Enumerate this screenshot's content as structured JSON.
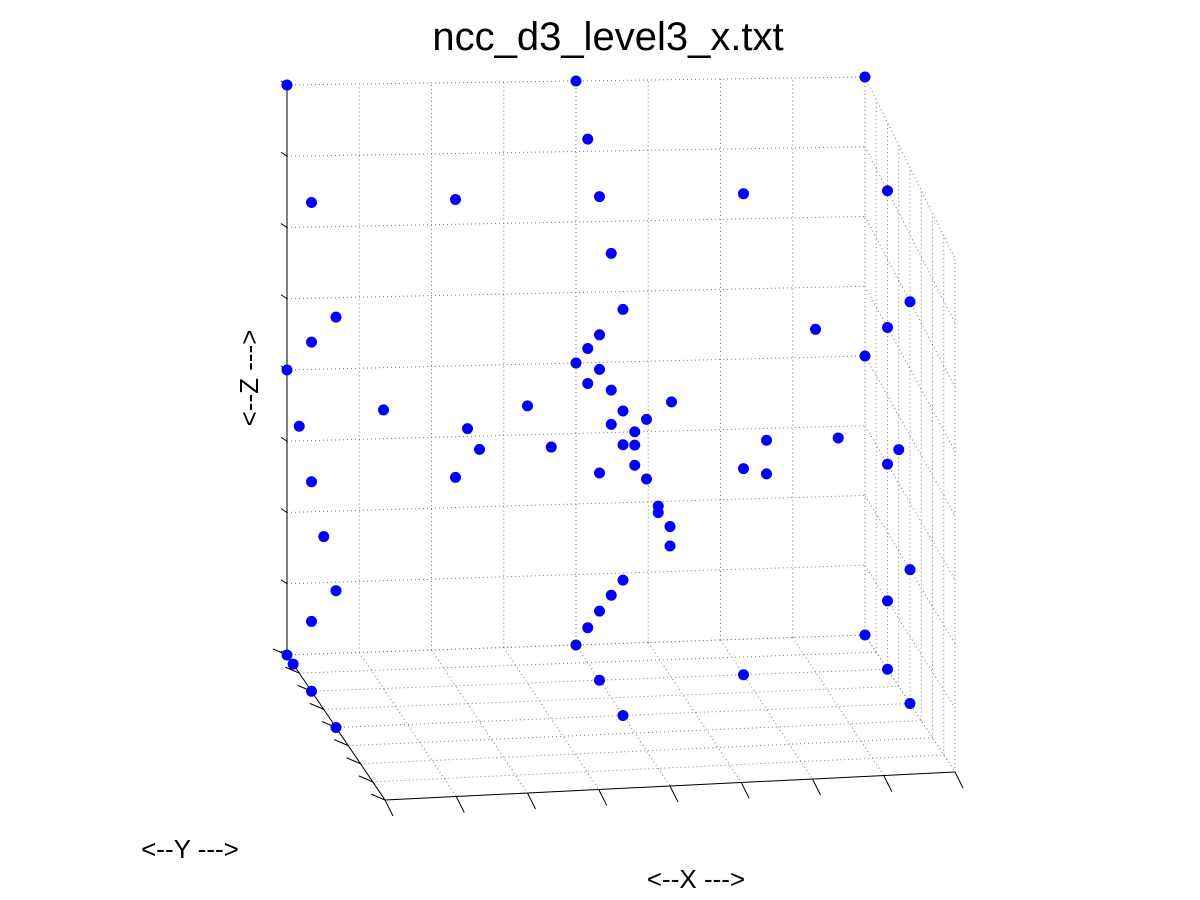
{
  "chart_data": {
    "type": "scatter",
    "title": "ncc_d3_level3_x.txt",
    "xlabel": "<--X --->",
    "ylabel": "<--Y --->",
    "zlabel": "<--Z --->",
    "xlim": [
      0,
      8
    ],
    "ylim": [
      0,
      8
    ],
    "zlim": [
      0,
      8
    ],
    "grid": true,
    "marker_color": "#0000ff",
    "series": [
      {
        "values": [
          [
            0,
            0,
            8
          ],
          [
            0,
            0,
            4
          ],
          [
            0,
            0,
            0
          ],
          [
            4,
            0,
            8
          ],
          [
            4,
            0,
            4
          ],
          [
            4,
            0,
            0
          ],
          [
            8,
            0,
            8
          ],
          [
            8,
            0,
            4
          ],
          [
            8,
            0,
            0
          ],
          [
            0,
            2,
            7
          ],
          [
            0,
            2,
            5
          ],
          [
            0,
            2,
            3
          ],
          [
            0,
            2,
            1
          ],
          [
            0,
            4,
            6
          ],
          [
            0,
            4,
            2
          ],
          [
            0,
            1,
            3.5
          ],
          [
            0,
            3,
            2.5
          ],
          [
            4,
            2,
            7
          ],
          [
            4,
            2,
            5
          ],
          [
            4,
            2,
            3
          ],
          [
            4,
            2,
            1
          ],
          [
            4,
            4,
            6
          ],
          [
            4,
            4,
            4
          ],
          [
            4,
            4,
            2
          ],
          [
            2,
            2,
            7
          ],
          [
            2,
            2,
            3
          ],
          [
            6,
            2,
            7
          ],
          [
            6,
            2,
            3
          ],
          [
            2,
            4,
            4
          ],
          [
            6,
            4,
            4
          ],
          [
            1,
            2,
            4
          ],
          [
            2,
            3,
            4
          ],
          [
            4,
            1,
            7.5
          ],
          [
            4,
            3,
            6.5
          ],
          [
            4,
            1,
            0.5
          ],
          [
            4,
            3,
            1.5
          ],
          [
            4,
            5,
            4.5
          ],
          [
            4,
            6,
            5
          ],
          [
            8,
            2,
            7
          ],
          [
            8,
            2,
            5
          ],
          [
            8,
            2,
            3
          ],
          [
            8,
            2,
            1
          ],
          [
            8,
            4,
            6
          ],
          [
            8,
            4,
            2
          ],
          [
            7,
            2,
            5
          ],
          [
            8,
            3,
            3.5
          ],
          [
            3,
            4,
            4
          ],
          [
            3,
            2,
            4
          ],
          [
            4,
            1,
            4
          ],
          [
            4,
            3,
            4
          ],
          [
            4,
            5,
            4
          ],
          [
            4,
            7,
            4
          ],
          [
            4,
            8,
            4
          ],
          [
            4,
            1,
            4.5
          ],
          [
            4,
            2,
            4.5
          ],
          [
            4,
            3,
            4.5
          ],
          [
            4,
            4,
            4.5
          ],
          [
            4,
            5,
            4.3
          ],
          [
            4,
            6,
            4.1
          ],
          [
            4,
            7,
            3.9
          ],
          [
            4,
            8,
            3.7
          ],
          [
            5,
            2,
            4
          ],
          [
            6,
            4,
            3.5
          ],
          [
            7,
            4,
            4
          ],
          [
            0,
            0.5,
            0
          ],
          [
            0,
            2,
            0
          ],
          [
            0,
            4,
            0
          ],
          [
            4,
            2,
            0
          ],
          [
            4,
            4,
            0
          ],
          [
            6,
            2,
            0
          ],
          [
            8,
            2,
            0
          ],
          [
            8,
            4,
            0
          ]
        ]
      }
    ]
  }
}
